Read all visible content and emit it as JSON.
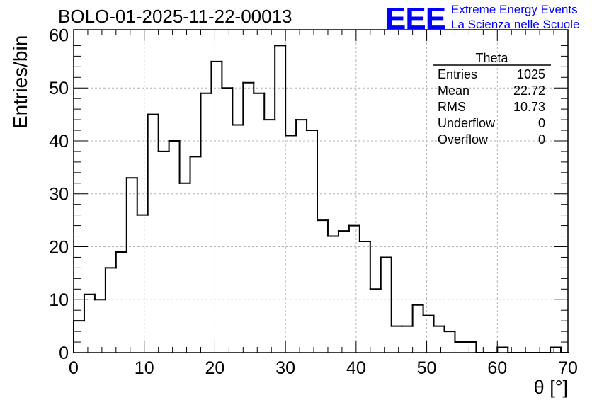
{
  "header": {
    "title": "BOLO-01-2025-11-22-00013",
    "logo_mark": "EEE",
    "logo_line1": "Extreme Energy Events",
    "logo_line2": "La Scienza nelle Scuole",
    "logo_color": "#0000ff"
  },
  "stats_box": {
    "name": "Theta",
    "rows": [
      {
        "label": "Entries",
        "value": "1025"
      },
      {
        "label": "Mean",
        "value": "22.72"
      },
      {
        "label": "RMS",
        "value": "10.73"
      },
      {
        "label": "Underflow",
        "value": "0"
      },
      {
        "label": "Overflow",
        "value": "0"
      }
    ]
  },
  "chart_data": {
    "type": "bar",
    "title": "BOLO-01-2025-11-22-00013",
    "xlabel": "θ [°]",
    "ylabel": "Entries/bin",
    "xlim": [
      0,
      70
    ],
    "ylim": [
      0,
      61
    ],
    "bin_width": 1.5,
    "x_ticks": [
      0,
      10,
      20,
      30,
      40,
      50,
      60,
      70
    ],
    "y_ticks": [
      0,
      10,
      20,
      30,
      40,
      50,
      60
    ],
    "grid": true,
    "legend": "top-right",
    "bins_start": [
      0,
      1.5,
      3,
      4.5,
      6,
      7.5,
      9,
      10.5,
      12,
      13.5,
      15,
      16.5,
      18,
      19.5,
      21,
      22.5,
      24,
      25.5,
      27,
      28.5,
      30,
      31.5,
      33,
      34.5,
      36,
      37.5,
      39,
      40.5,
      42,
      43.5,
      45,
      46.5,
      48,
      49.5,
      51,
      52.5,
      54,
      55.5,
      57,
      58.5,
      60,
      61.5,
      63,
      64.5,
      66,
      67.5,
      69
    ],
    "values": [
      6,
      11,
      10,
      16,
      19,
      33,
      26,
      45,
      38,
      40,
      32,
      37,
      49,
      55,
      50,
      43,
      51,
      49,
      44,
      58,
      41,
      44,
      42,
      25,
      22,
      23,
      24,
      21,
      12,
      18,
      5,
      5,
      9,
      7,
      5,
      4,
      2,
      2,
      0,
      0,
      1,
      0,
      0,
      0,
      0,
      1,
      0
    ],
    "line_color": "#000000",
    "grid_color": "#b4b4b4"
  }
}
